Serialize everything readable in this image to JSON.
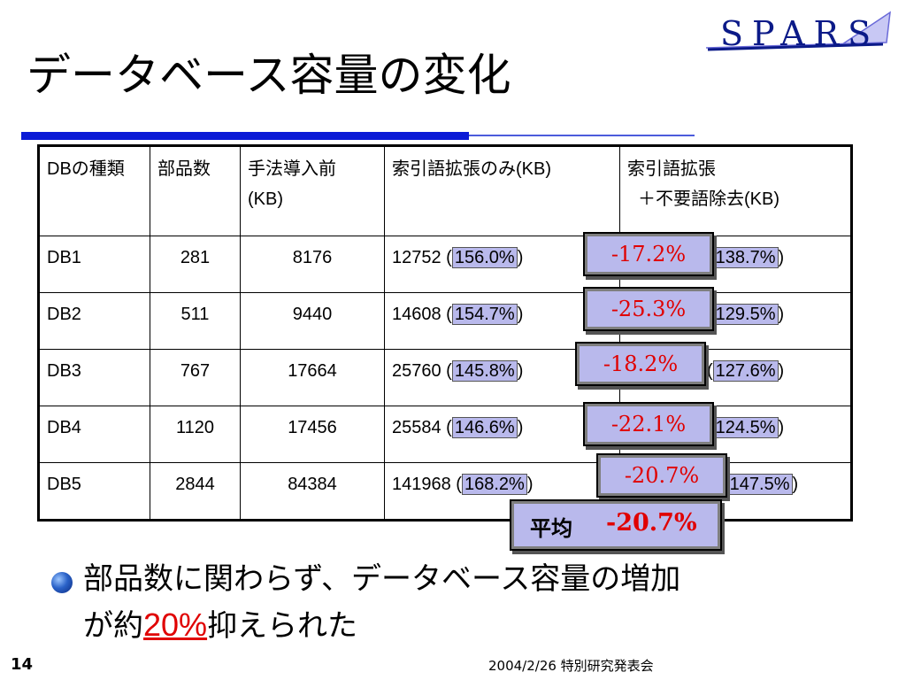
{
  "logo": {
    "text": "SPARS"
  },
  "title": "データベース容量の変化",
  "table": {
    "headers": {
      "col1": "DBの種類",
      "col2": "部品数",
      "col3_line1": "手法導入前",
      "col3_line2": "(KB)",
      "col4": "索引語拡張のみ(KB)",
      "col5_line1": "索引語拡張",
      "col5_line2": "＋不要語除去(KB)"
    },
    "rows": [
      {
        "db": "DB1",
        "parts": "281",
        "before": "8176",
        "expand": "12752",
        "expand_pct": "156.0%",
        "prune_pct": "138.7%"
      },
      {
        "db": "DB2",
        "parts": "511",
        "before": "9440",
        "expand": "14608",
        "expand_pct": "154.7%",
        "prune_pct": "129.5%"
      },
      {
        "db": "DB3",
        "parts": "767",
        "before": "17664",
        "expand": "25760",
        "expand_pct": "145.8%",
        "prune_pct": "127.6%"
      },
      {
        "db": "DB4",
        "parts": "1120",
        "before": "17456",
        "expand": "25584",
        "expand_pct": "146.6%",
        "prune_pct": "124.5%"
      },
      {
        "db": "DB5",
        "parts": "2844",
        "before": "84384",
        "expand": "141968",
        "expand_pct": "168.2%",
        "prune_pct": "147.5%"
      }
    ]
  },
  "reductions": [
    "-17.2%",
    "-25.3%",
    "-18.2%",
    "-22.1%",
    "-20.7%"
  ],
  "average": {
    "label": "平均",
    "value": "-20.7%"
  },
  "bullet": {
    "line1": "部品数に関わらず、データベース容量の増加",
    "line2_prefix": "が約",
    "line2_emphasis": "20%",
    "line2_suffix": "抑えられた"
  },
  "page_number": "14",
  "footer": "2004/2/26  特別研究発表会",
  "colors": {
    "accent_blue": "#0b1ad6",
    "highlight": "#b9b9ec",
    "emphasis_red": "#e00000"
  }
}
